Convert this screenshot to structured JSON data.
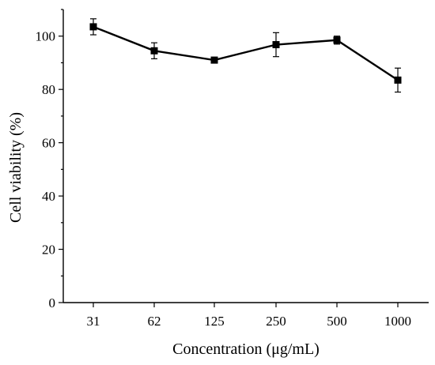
{
  "chart_data": {
    "type": "line",
    "categories": [
      "31",
      "62",
      "125",
      "250",
      "500",
      "1000"
    ],
    "series": [
      {
        "values": [
          103.5,
          94.5,
          91,
          96.8,
          98.5,
          83.5
        ],
        "errors": [
          3,
          3,
          0.8,
          4.5,
          1.5,
          4.5
        ],
        "marker": "square",
        "color": "#000000"
      }
    ],
    "xlabel": "Concentration (μg/mL)",
    "ylabel": "Cell viability (%)",
    "ylim": [
      0,
      110
    ],
    "yticks": [
      0,
      20,
      40,
      60,
      80,
      100
    ],
    "grid": false
  }
}
